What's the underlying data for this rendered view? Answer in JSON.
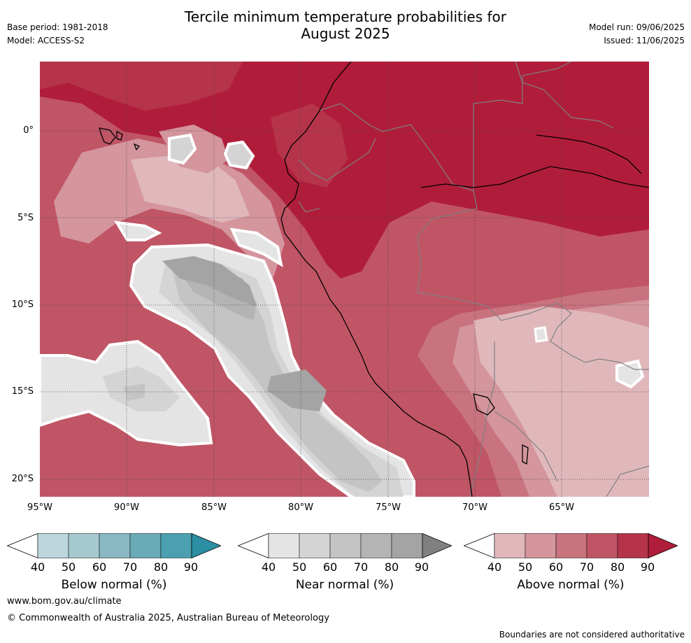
{
  "header": {
    "title_line1": "Tercile minimum temperature probabilities for",
    "title_line2": "August 2025",
    "base_period": "Base period: 1981-2018",
    "model": "Model: ACCESS-S2",
    "model_run": "Model run: 09/06/2025",
    "issued": "Issued: 11/06/2025"
  },
  "map": {
    "lat_labels": [
      "0°",
      "5°S",
      "10°S",
      "15°S",
      "20°S"
    ],
    "lon_labels": [
      "95°W",
      "90°W",
      "85°W",
      "80°W",
      "75°W",
      "70°W",
      "65°W"
    ]
  },
  "colorbars": [
    {
      "label": "Below normal (%)",
      "ticks": [
        "40",
        "50",
        "60",
        "70",
        "80",
        "90"
      ],
      "colors": [
        "#ffffff",
        "#bcd6dc",
        "#a6c8cf",
        "#89b8c4",
        "#6aaab7",
        "#4aa0b0",
        "#2c8fa3"
      ]
    },
    {
      "label": "Near normal (%)",
      "ticks": [
        "40",
        "50",
        "60",
        "70",
        "80",
        "90"
      ],
      "colors": [
        "#ffffff",
        "#e4e4e4",
        "#d4d4d4",
        "#c4c4c4",
        "#b4b4b4",
        "#a4a4a4",
        "#808080"
      ]
    },
    {
      "label": "Above normal (%)",
      "ticks": [
        "40",
        "50",
        "60",
        "70",
        "80",
        "90"
      ],
      "colors": [
        "#ffffff",
        "#e0b8bc",
        "#d4959c",
        "#c9737e",
        "#c05566",
        "#b5344a",
        "#b01d3a"
      ]
    }
  ],
  "footer": {
    "website": "www.bom.gov.au/climate",
    "copyright": "© Commonwealth of Australia 2025, Australian Bureau of Meteorology",
    "disclaimer": "Boundaries are not considered authoritative"
  }
}
